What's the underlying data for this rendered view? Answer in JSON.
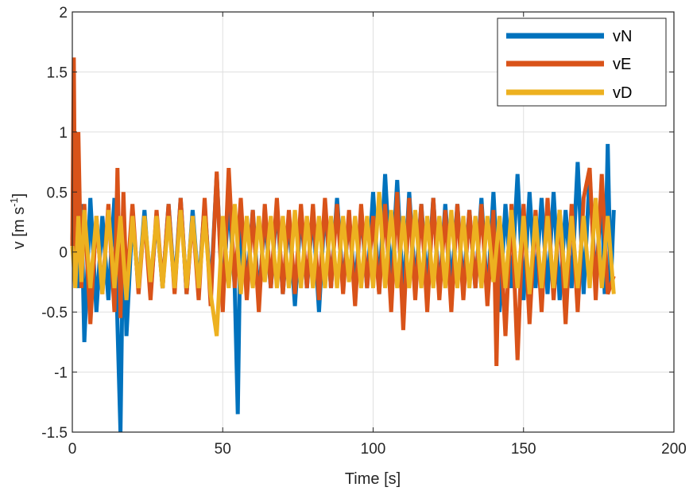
{
  "chart_data": {
    "type": "line",
    "xlabel": "Time [s]",
    "ylabel": {
      "prefix": "v [m s",
      "exponent": "-1",
      "suffix": "]"
    },
    "xlim": [
      0,
      200
    ],
    "ylim": [
      -1.5,
      2
    ],
    "xticks": [
      0,
      50,
      100,
      150,
      200
    ],
    "xtick_labels": [
      "0",
      "50",
      "100",
      "150",
      "200"
    ],
    "yticks": [
      -1.5,
      -1,
      -0.5,
      0,
      0.5,
      1,
      1.5,
      2
    ],
    "ytick_labels": [
      "-1.5",
      "-1",
      "-0.5",
      "0",
      "0.5",
      "1",
      "1.5",
      "2"
    ],
    "grid": true,
    "legend_position": "top-right",
    "series": [
      {
        "name": "vN",
        "color": "#0072BD",
        "x": [
          0,
          1,
          2,
          3,
          4,
          6,
          8,
          10,
          12,
          14,
          15,
          16,
          17,
          18,
          20,
          22,
          24,
          26,
          28,
          30,
          32,
          34,
          36,
          38,
          40,
          42,
          44,
          46,
          48,
          50,
          52,
          54,
          55,
          56,
          58,
          60,
          62,
          64,
          66,
          68,
          70,
          72,
          74,
          76,
          78,
          80,
          82,
          84,
          86,
          88,
          90,
          92,
          94,
          96,
          98,
          100,
          102,
          104,
          106,
          108,
          110,
          112,
          114,
          116,
          118,
          120,
          122,
          124,
          126,
          128,
          130,
          132,
          134,
          136,
          138,
          140,
          142,
          144,
          146,
          148,
          150,
          152,
          154,
          156,
          158,
          160,
          162,
          164,
          166,
          168,
          170,
          172,
          174,
          176,
          177,
          178,
          179,
          180
        ],
        "y": [
          0.1,
          0.6,
          -0.3,
          0.4,
          -0.75,
          0.45,
          -0.5,
          0.3,
          -0.4,
          0.45,
          -0.6,
          -1.5,
          0.35,
          -0.7,
          0.3,
          -0.3,
          0.35,
          -0.35,
          0.3,
          -0.3,
          0.4,
          -0.3,
          0.45,
          -0.35,
          0.35,
          -0.3,
          0.4,
          -0.35,
          0.65,
          -0.4,
          0.45,
          -0.3,
          -1.35,
          0.4,
          -0.3,
          0.35,
          -0.4,
          0.3,
          -0.3,
          0.4,
          -0.35,
          0.3,
          -0.45,
          0.35,
          -0.3,
          0.35,
          -0.5,
          0.4,
          -0.3,
          0.45,
          -0.3,
          0.3,
          -0.3,
          0.35,
          -0.3,
          0.5,
          -0.35,
          0.65,
          -0.3,
          0.6,
          -0.4,
          0.5,
          -0.3,
          0.4,
          -0.3,
          0.45,
          -0.35,
          0.4,
          -0.3,
          0.4,
          -0.3,
          0.35,
          -0.3,
          0.45,
          -0.4,
          0.5,
          -0.5,
          0.4,
          -0.3,
          0.65,
          -0.4,
          0.5,
          -0.3,
          0.45,
          -0.35,
          0.5,
          -0.4,
          0.35,
          -0.3,
          0.75,
          -0.35,
          0.65,
          -0.3,
          0.55,
          -0.35,
          0.9,
          -0.3,
          0.35
        ]
      },
      {
        "name": "vE",
        "color": "#D95319",
        "x": [
          0,
          0.5,
          1,
          2,
          3,
          4,
          6,
          8,
          10,
          12,
          14,
          15,
          16,
          17,
          18,
          20,
          22,
          24,
          26,
          28,
          30,
          32,
          34,
          36,
          38,
          40,
          42,
          44,
          46,
          48,
          50,
          52,
          54,
          56,
          58,
          60,
          62,
          64,
          66,
          68,
          70,
          72,
          74,
          76,
          78,
          80,
          82,
          84,
          86,
          88,
          90,
          92,
          94,
          96,
          98,
          100,
          102,
          104,
          106,
          108,
          110,
          112,
          114,
          116,
          118,
          120,
          122,
          124,
          126,
          128,
          130,
          132,
          134,
          136,
          138,
          140,
          141,
          142,
          144,
          146,
          148,
          150,
          152,
          154,
          156,
          158,
          160,
          162,
          164,
          166,
          168,
          170,
          172,
          174,
          176,
          178,
          180
        ],
        "y": [
          0.05,
          1.62,
          -0.2,
          1.0,
          -0.3,
          0.4,
          -0.6,
          0.3,
          -0.35,
          0.4,
          -0.5,
          0.7,
          -0.55,
          0.5,
          -0.3,
          0.4,
          -0.35,
          0.3,
          -0.4,
          0.35,
          -0.3,
          0.4,
          -0.35,
          0.45,
          -0.35,
          0.3,
          -0.4,
          0.45,
          -0.45,
          0.67,
          -0.5,
          0.7,
          -0.3,
          0.45,
          -0.4,
          0.35,
          -0.5,
          0.4,
          -0.3,
          0.45,
          -0.35,
          0.35,
          -0.35,
          0.4,
          -0.3,
          0.4,
          -0.4,
          0.45,
          -0.3,
          0.4,
          -0.35,
          0.35,
          -0.45,
          0.4,
          -0.3,
          0.3,
          -0.35,
          0.4,
          -0.5,
          0.5,
          -0.65,
          0.45,
          -0.4,
          0.4,
          -0.5,
          0.45,
          -0.4,
          0.35,
          -0.5,
          0.4,
          -0.4,
          0.35,
          -0.3,
          0.4,
          -0.45,
          0.35,
          -0.95,
          0.3,
          -0.7,
          0.4,
          -0.9,
          0.4,
          -0.6,
          0.35,
          -0.5,
          0.45,
          -0.4,
          0.35,
          -0.6,
          0.4,
          -0.5,
          0.45,
          0.7,
          -0.4,
          0.65,
          -0.35,
          -0.2
        ]
      },
      {
        "name": "vD",
        "color": "#EDB120",
        "x": [
          0,
          1,
          2,
          3,
          4,
          6,
          8,
          10,
          12,
          14,
          16,
          18,
          20,
          22,
          24,
          26,
          28,
          30,
          32,
          34,
          36,
          38,
          40,
          42,
          44,
          46,
          48,
          50,
          52,
          54,
          56,
          58,
          60,
          62,
          64,
          66,
          68,
          70,
          72,
          74,
          76,
          78,
          80,
          82,
          84,
          86,
          88,
          90,
          92,
          94,
          96,
          98,
          100,
          102,
          104,
          106,
          108,
          110,
          112,
          114,
          116,
          118,
          120,
          122,
          124,
          126,
          128,
          130,
          132,
          134,
          136,
          138,
          140,
          142,
          144,
          146,
          148,
          150,
          152,
          154,
          156,
          158,
          160,
          162,
          164,
          166,
          168,
          170,
          172,
          174,
          176,
          178,
          180
        ],
        "y": [
          0.05,
          -0.3,
          0.3,
          -0.25,
          0.35,
          -0.3,
          0.3,
          -0.35,
          0.35,
          -0.3,
          0.3,
          -0.4,
          0.3,
          -0.3,
          0.3,
          -0.25,
          0.3,
          -0.3,
          0.3,
          -0.3,
          0.35,
          -0.3,
          0.3,
          -0.3,
          0.3,
          -0.35,
          -0.7,
          0.3,
          -0.3,
          0.4,
          -0.35,
          0.3,
          -0.3,
          0.3,
          -0.25,
          0.3,
          -0.3,
          0.3,
          -0.3,
          0.35,
          -0.3,
          0.3,
          -0.3,
          0.3,
          -0.3,
          0.3,
          -0.3,
          0.3,
          -0.25,
          0.3,
          -0.3,
          0.3,
          -0.3,
          0.5,
          -0.3,
          0.35,
          -0.3,
          0.3,
          -0.3,
          0.35,
          -0.3,
          0.3,
          -0.3,
          0.3,
          -0.3,
          0.35,
          -0.3,
          0.3,
          -0.3,
          0.3,
          -0.3,
          0.3,
          -0.25,
          0.3,
          -0.3,
          0.35,
          -0.3,
          0.3,
          -0.35,
          0.3,
          -0.3,
          0.3,
          -0.3,
          0.35,
          -0.3,
          0.3,
          -0.3,
          0.3,
          -0.3,
          0.45,
          -0.3,
          0.3,
          -0.35
        ]
      }
    ]
  }
}
